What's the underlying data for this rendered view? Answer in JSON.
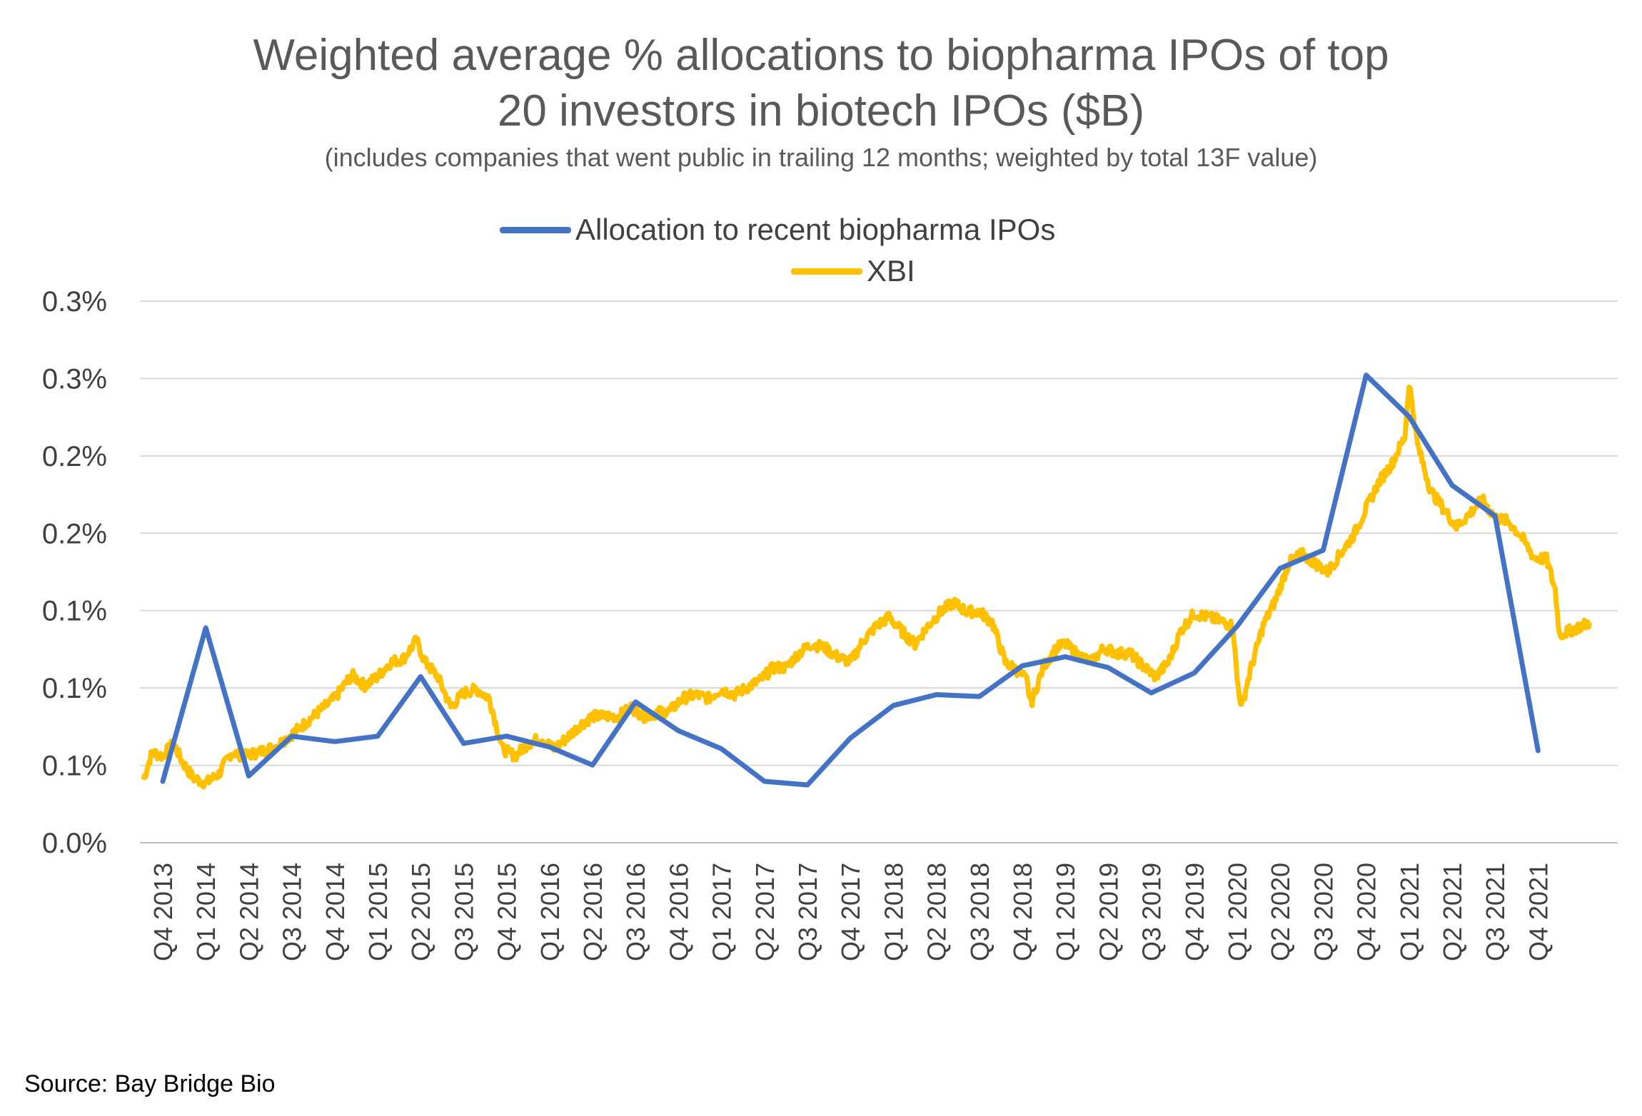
{
  "chart_data": {
    "type": "line",
    "title": "Weighted average % allocations to biopharma IPOs of top",
    "title_line2": "20 investors in biotech IPOs ($B)",
    "subtitle": "(includes companies that went public in trailing 12 months; weighted by total 13F value)",
    "source": "Source: Bay Bridge Bio",
    "legend_position": "top-center",
    "grid": true,
    "y_tick_labels": [
      "0.0%",
      "0.1%",
      "0.1%",
      "0.1%",
      "0.2%",
      "0.2%",
      "0.3%",
      "0.3%"
    ],
    "ylim": [
      0,
      0.3
    ],
    "categories": [
      "Q4 2013",
      "Q1 2014",
      "Q2 2014",
      "Q3 2014",
      "Q4 2014",
      "Q1 2015",
      "Q2 2015",
      "Q3 2015",
      "Q4 2015",
      "Q1 2016",
      "Q2 2016",
      "Q3 2016",
      "Q4 2016",
      "Q1 2017",
      "Q2 2017",
      "Q3 2017",
      "Q4 2017",
      "Q1 2018",
      "Q2 2018",
      "Q3 2018",
      "Q4 2018",
      "Q1 2019",
      "Q2 2019",
      "Q3 2019",
      "Q4 2019",
      "Q1 2020",
      "Q2 2020",
      "Q3 2020",
      "Q4 2020",
      "Q1 2021",
      "Q2 2021",
      "Q3 2021",
      "Q4 2021"
    ],
    "series": [
      {
        "name": "Allocation to recent biopharma IPOs",
        "color": "#4472C4",
        "values": [
          0.034,
          0.119,
          0.037,
          0.059,
          0.056,
          0.059,
          0.092,
          0.055,
          0.059,
          0.053,
          0.043,
          0.078,
          0.062,
          0.052,
          0.034,
          0.032,
          0.058,
          0.076,
          0.082,
          0.081,
          0.098,
          0.103,
          0.097,
          0.083,
          0.094,
          0.12,
          0.152,
          0.162,
          0.259,
          0.236,
          0.198,
          0.181,
          0.051
        ]
      },
      {
        "name": "XBI",
        "color": "#FFC000",
        "anchors": [
          [
            -0.45,
            0.035
          ],
          [
            -0.25,
            0.05
          ],
          [
            0.0,
            0.048
          ],
          [
            0.25,
            0.055
          ],
          [
            0.45,
            0.045
          ],
          [
            0.7,
            0.036
          ],
          [
            1.0,
            0.033
          ],
          [
            1.3,
            0.038
          ],
          [
            1.6,
            0.05
          ],
          [
            1.9,
            0.048
          ],
          [
            2.2,
            0.05
          ],
          [
            2.6,
            0.053
          ],
          [
            3.0,
            0.06
          ],
          [
            3.5,
            0.07
          ],
          [
            4.0,
            0.08
          ],
          [
            4.4,
            0.093
          ],
          [
            4.7,
            0.087
          ],
          [
            5.0,
            0.092
          ],
          [
            5.3,
            0.1
          ],
          [
            5.6,
            0.102
          ],
          [
            5.9,
            0.112
          ],
          [
            6.1,
            0.1
          ],
          [
            6.4,
            0.092
          ],
          [
            6.7,
            0.075
          ],
          [
            7.0,
            0.083
          ],
          [
            7.3,
            0.085
          ],
          [
            7.6,
            0.08
          ],
          [
            7.9,
            0.052
          ],
          [
            8.2,
            0.048
          ],
          [
            8.5,
            0.055
          ],
          [
            8.8,
            0.058
          ],
          [
            9.1,
            0.052
          ],
          [
            9.4,
            0.058
          ],
          [
            9.7,
            0.065
          ],
          [
            10.0,
            0.07
          ],
          [
            10.3,
            0.07
          ],
          [
            10.6,
            0.07
          ],
          [
            10.9,
            0.075
          ],
          [
            11.2,
            0.07
          ],
          [
            11.5,
            0.072
          ],
          [
            11.8,
            0.073
          ],
          [
            12.1,
            0.08
          ],
          [
            12.4,
            0.082
          ],
          [
            12.7,
            0.08
          ],
          [
            13.0,
            0.085
          ],
          [
            13.3,
            0.082
          ],
          [
            13.6,
            0.086
          ],
          [
            13.9,
            0.09
          ],
          [
            14.2,
            0.097
          ],
          [
            14.5,
            0.097
          ],
          [
            14.8,
            0.105
          ],
          [
            15.1,
            0.11
          ],
          [
            15.4,
            0.108
          ],
          [
            15.7,
            0.103
          ],
          [
            16.0,
            0.1
          ],
          [
            16.3,
            0.112
          ],
          [
            16.6,
            0.12
          ],
          [
            16.9,
            0.125
          ],
          [
            17.2,
            0.117
          ],
          [
            17.5,
            0.11
          ],
          [
            17.8,
            0.12
          ],
          [
            18.1,
            0.128
          ],
          [
            18.4,
            0.133
          ],
          [
            18.7,
            0.128
          ],
          [
            19.0,
            0.128
          ],
          [
            19.3,
            0.122
          ],
          [
            19.6,
            0.1
          ],
          [
            19.9,
            0.095
          ],
          [
            20.1,
            0.09
          ],
          [
            20.2,
            0.077
          ],
          [
            20.5,
            0.098
          ],
          [
            20.8,
            0.108
          ],
          [
            21.0,
            0.11
          ],
          [
            21.3,
            0.104
          ],
          [
            21.6,
            0.1
          ],
          [
            21.9,
            0.108
          ],
          [
            22.2,
            0.105
          ],
          [
            22.5,
            0.105
          ],
          [
            22.8,
            0.098
          ],
          [
            23.1,
            0.092
          ],
          [
            23.4,
            0.1
          ],
          [
            23.7,
            0.118
          ],
          [
            24.0,
            0.127
          ],
          [
            24.3,
            0.125
          ],
          [
            24.6,
            0.123
          ],
          [
            24.9,
            0.12
          ],
          [
            25.0,
            0.09
          ],
          [
            25.1,
            0.075
          ],
          [
            25.3,
            0.095
          ],
          [
            25.6,
            0.12
          ],
          [
            25.9,
            0.135
          ],
          [
            26.2,
            0.155
          ],
          [
            26.5,
            0.16
          ],
          [
            26.8,
            0.155
          ],
          [
            27.1,
            0.15
          ],
          [
            27.4,
            0.16
          ],
          [
            27.7,
            0.17
          ],
          [
            28.0,
            0.185
          ],
          [
            28.3,
            0.2
          ],
          [
            28.6,
            0.21
          ],
          [
            28.9,
            0.225
          ],
          [
            29.0,
            0.255
          ],
          [
            29.2,
            0.22
          ],
          [
            29.5,
            0.195
          ],
          [
            29.8,
            0.185
          ],
          [
            30.1,
            0.175
          ],
          [
            30.4,
            0.182
          ],
          [
            30.7,
            0.19
          ],
          [
            31.0,
            0.18
          ],
          [
            31.3,
            0.178
          ],
          [
            31.6,
            0.17
          ],
          [
            31.9,
            0.158
          ],
          [
            32.2,
            0.157
          ],
          [
            32.4,
            0.14
          ],
          [
            32.5,
            0.115
          ],
          [
            32.8,
            0.118
          ],
          [
            33.2,
            0.122
          ]
        ]
      }
    ]
  }
}
